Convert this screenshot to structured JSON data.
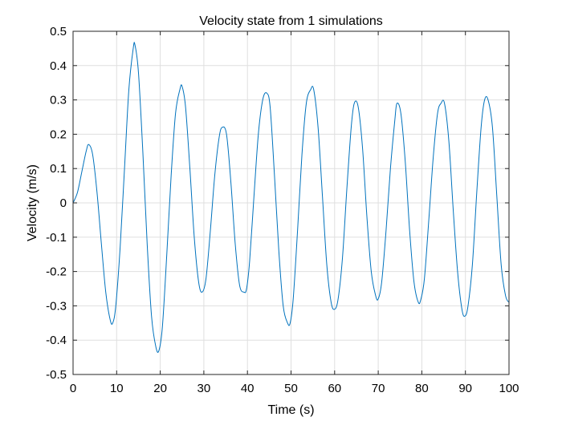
{
  "chart_data": {
    "type": "line",
    "title": "Velocity state from 1 simulations",
    "xlabel": "Time (s)",
    "ylabel": "Velocity (m/s)",
    "xlim": [
      0,
      100
    ],
    "ylim": [
      -0.5,
      0.5
    ],
    "xticks": [
      0,
      10,
      20,
      30,
      40,
      50,
      60,
      70,
      80,
      90,
      100
    ],
    "yticks": [
      -0.5,
      -0.4,
      -0.3,
      -0.2,
      -0.1,
      0,
      0.1,
      0.2,
      0.3,
      0.4,
      0.5
    ],
    "grid": true,
    "colors": {
      "series": "#0072bd",
      "grid": "#dfdfdf",
      "axes": "#262626"
    },
    "series": [
      {
        "x": [
          0,
          1.0,
          2.0,
          3.0,
          3.6,
          4.5,
          5.5,
          6.5,
          7.5,
          8.5,
          9.1,
          9.8,
          10.8,
          11.8,
          12.8,
          13.8,
          14.2,
          15.0,
          16.0,
          17.0,
          18.0,
          19.0,
          19.7,
          20.5,
          21.5,
          22.5,
          23.5,
          24.5,
          25.0,
          25.8,
          26.8,
          27.8,
          28.8,
          29.6,
          30.5,
          31.5,
          32.5,
          33.5,
          34.2,
          35.2,
          36.2,
          37.2,
          38.2,
          39.2,
          39.8,
          40.5,
          41.5,
          42.5,
          43.5,
          44.4,
          45.2,
          46.2,
          47.2,
          48.2,
          49.2,
          49.8,
          50.5,
          51.5,
          52.5,
          53.5,
          54.5,
          55.2,
          56.2,
          57.2,
          58.2,
          59.2,
          60.0,
          60.8,
          61.8,
          62.8,
          63.8,
          64.5,
          65.4,
          66.4,
          67.4,
          68.4,
          69.4,
          70.0,
          70.8,
          71.8,
          72.8,
          73.8,
          74.3,
          75.2,
          76.2,
          77.2,
          78.2,
          79.2,
          79.8,
          80.6,
          81.6,
          82.6,
          83.6,
          84.4,
          85.2,
          86.2,
          87.2,
          88.2,
          89.2,
          89.9,
          90.6,
          91.6,
          92.6,
          93.6,
          94.4,
          95.2,
          96.2,
          97.2,
          98.2,
          99.2,
          100.0
        ],
        "y": [
          0.0,
          0.03,
          0.09,
          0.15,
          0.17,
          0.14,
          0.03,
          -0.12,
          -0.26,
          -0.34,
          -0.35,
          -0.3,
          -0.13,
          0.1,
          0.33,
          0.45,
          0.46,
          0.38,
          0.15,
          -0.12,
          -0.33,
          -0.42,
          -0.43,
          -0.36,
          -0.15,
          0.08,
          0.26,
          0.33,
          0.34,
          0.28,
          0.1,
          -0.1,
          -0.23,
          -0.26,
          -0.22,
          -0.08,
          0.08,
          0.19,
          0.22,
          0.2,
          0.06,
          -0.12,
          -0.24,
          -0.26,
          -0.25,
          -0.17,
          0.02,
          0.2,
          0.3,
          0.32,
          0.28,
          0.08,
          -0.14,
          -0.3,
          -0.35,
          -0.35,
          -0.28,
          -0.08,
          0.14,
          0.29,
          0.33,
          0.33,
          0.22,
          0.02,
          -0.18,
          -0.29,
          -0.31,
          -0.28,
          -0.16,
          0.04,
          0.22,
          0.29,
          0.28,
          0.16,
          -0.04,
          -0.2,
          -0.27,
          -0.28,
          -0.23,
          -0.08,
          0.1,
          0.24,
          0.29,
          0.26,
          0.12,
          -0.08,
          -0.23,
          -0.29,
          -0.28,
          -0.22,
          -0.05,
          0.13,
          0.26,
          0.29,
          0.29,
          0.18,
          -0.02,
          -0.2,
          -0.31,
          -0.33,
          -0.3,
          -0.18,
          0.03,
          0.22,
          0.3,
          0.3,
          0.22,
          0.02,
          -0.18,
          -0.27,
          -0.29
        ]
      }
    ]
  }
}
